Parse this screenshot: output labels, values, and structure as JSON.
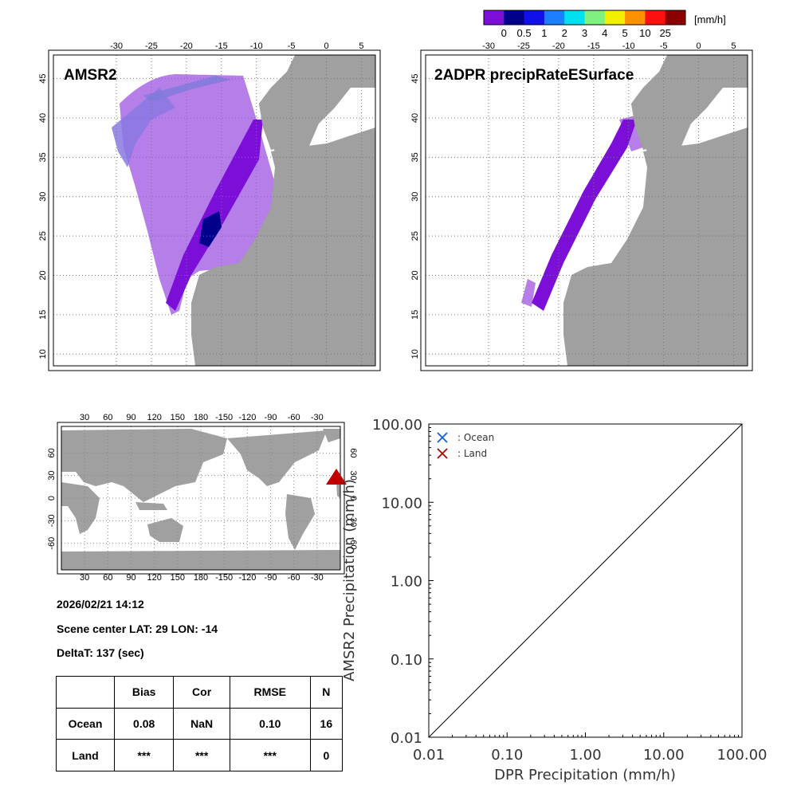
{
  "colorbar": {
    "unit": "[mm/h]",
    "colors": [
      "#7b0fd8",
      "#00008b",
      "#1010e8",
      "#1a80ff",
      "#00e0f0",
      "#80f080",
      "#f0f000",
      "#ff9000",
      "#ff1010",
      "#8b0000"
    ],
    "ticks": [
      "0",
      "0.5",
      "1",
      "2",
      "3",
      "4",
      "5",
      "10",
      "25"
    ]
  },
  "maps": [
    {
      "title": "AMSR2",
      "lon_ticks": [
        "-30",
        "-25",
        "-20",
        "-15",
        "-10",
        "-5",
        "0",
        "5"
      ],
      "lat_ticks": [
        "10",
        "15",
        "20",
        "25",
        "30",
        "35",
        "40",
        "45"
      ]
    },
    {
      "title": "2ADPR precipRateESurface",
      "lon_ticks": [
        "-30",
        "-25",
        "-20",
        "-15",
        "-10",
        "-5",
        "0",
        "5"
      ],
      "lat_ticks": [
        "10",
        "15",
        "20",
        "25",
        "30",
        "35",
        "40",
        "45"
      ]
    }
  ],
  "world_map": {
    "lon_ticks": [
      "30",
      "60",
      "90",
      "120",
      "150",
      "180",
      "-150",
      "-120",
      "-90",
      "-60",
      "-30"
    ],
    "lat_ticks": [
      "-60",
      "-30",
      "0",
      "30",
      "60"
    ],
    "marker": {
      "lat": 29,
      "lon": -14,
      "color": "#c00000"
    }
  },
  "info": {
    "datetime": "2026/02/21 14:12",
    "scene_center": "Scene center LAT: 29   LON: -14",
    "delta_t": "DeltaT:  137 (sec)"
  },
  "stats_table": {
    "headers": [
      "",
      "Bias",
      "Cor",
      "RMSE",
      "N"
    ],
    "rows": [
      [
        "Ocean",
        "0.08",
        "NaN",
        "0.10",
        "16"
      ],
      [
        "Land",
        "***",
        "***",
        "***",
        "0"
      ]
    ]
  },
  "chart_data": {
    "type": "scatter",
    "xlabel": "DPR Precipitation (mm/h)",
    "ylabel": "AMSR2 Precipitation (mm/h)",
    "x_scale": "log",
    "y_scale": "log",
    "xlim": [
      0.01,
      100
    ],
    "ylim": [
      0.01,
      100
    ],
    "x_ticks": [
      "0.01",
      "0.10",
      "1.00",
      "10.00",
      "100.00"
    ],
    "y_ticks": [
      "0.01",
      "0.10",
      "1.00",
      "10.00",
      "100.00"
    ],
    "legend": [
      {
        "name": ": Ocean",
        "color": "#1060e0"
      },
      {
        "name": ": Land",
        "color": "#b00000"
      }
    ],
    "legend_position": "top-left",
    "series": [
      {
        "name": ": Ocean",
        "points": []
      },
      {
        "name": ": Land",
        "points": []
      }
    ],
    "reference_line": "1:1"
  }
}
